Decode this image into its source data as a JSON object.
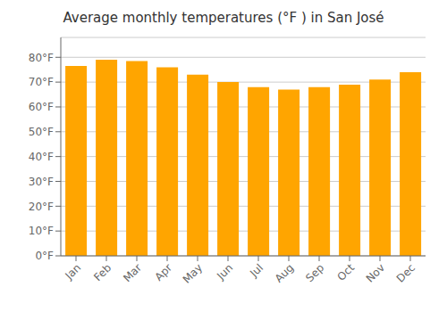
{
  "chart_data": {
    "type": "bar",
    "title": "Average monthly temperatures (°F ) in San José",
    "categories": [
      "Jan",
      "Feb",
      "Mar",
      "Apr",
      "May",
      "Jun",
      "Jul",
      "Aug",
      "Sep",
      "Oct",
      "Nov",
      "Dec"
    ],
    "values": [
      76.5,
      79.0,
      78.5,
      76.0,
      73.0,
      70.0,
      68.0,
      67.0,
      68.0,
      69.0,
      71.0,
      74.0
    ],
    "color": "#FFA500",
    "ylim": [
      0,
      88
    ],
    "yticks": [
      {
        "value": 0,
        "label": "0°F"
      },
      {
        "value": 10,
        "label": "10°F"
      },
      {
        "value": 20,
        "label": "20°F"
      },
      {
        "value": 30,
        "label": "30°F"
      },
      {
        "value": 40,
        "label": "40°F"
      },
      {
        "value": 50,
        "label": "50°F"
      },
      {
        "value": 60,
        "label": "60°F"
      },
      {
        "value": 70,
        "label": "70°F"
      },
      {
        "value": 80,
        "label": "80°F"
      }
    ],
    "grid": true
  }
}
